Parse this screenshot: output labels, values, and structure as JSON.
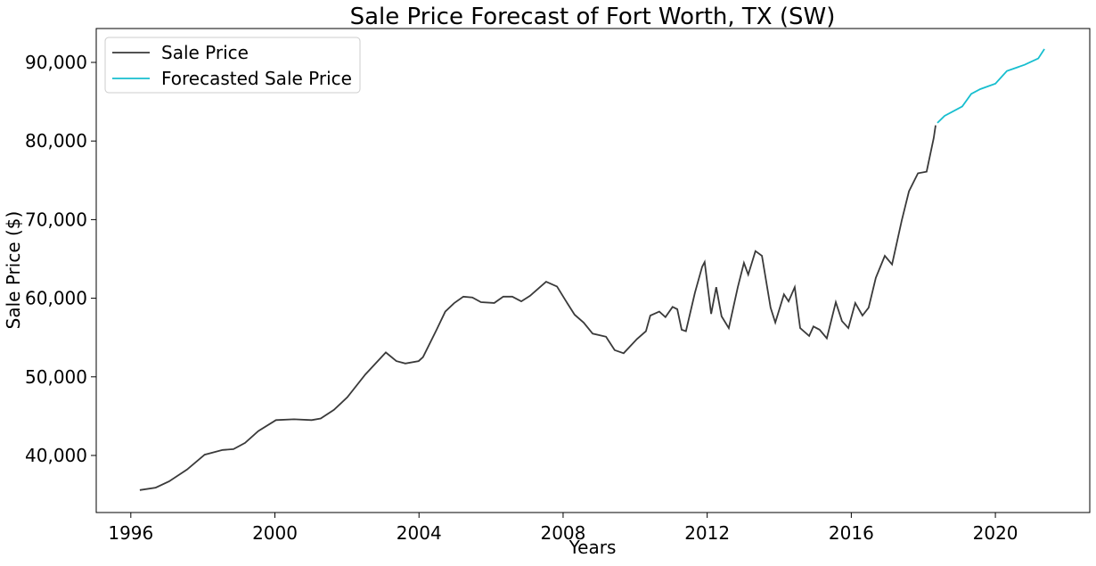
{
  "chart_data": {
    "type": "line",
    "title": "Sale Price Forecast of Fort Worth, TX (SW)",
    "x_label": "Years",
    "y_label": "Sale Price ($)",
    "xlim": [
      1995.04,
      2022.62
    ],
    "xticks": [
      1996,
      2000,
      2004,
      2008,
      2012,
      2016,
      2020
    ],
    "ylim": [
      32740,
      94310
    ],
    "yticks": [
      {
        "value": 40000,
        "label": "40,000"
      },
      {
        "value": 50000,
        "label": "50,000"
      },
      {
        "value": 60000,
        "label": "60,000"
      },
      {
        "value": 70000,
        "label": "70,000"
      },
      {
        "value": 80000,
        "label": "80,000"
      },
      {
        "value": 90000,
        "label": "90,000"
      }
    ],
    "grid": false,
    "legend": "upper left",
    "series": [
      {
        "name": "Sale Price",
        "color": "#3a3a3a",
        "x": [
          1996.25,
          1996.69,
          1997.06,
          1997.56,
          1998.05,
          1998.55,
          1998.85,
          1999.17,
          1999.54,
          2000.03,
          2000.53,
          2001.02,
          2001.27,
          2001.64,
          2002.01,
          2002.51,
          2003.08,
          2003.37,
          2003.62,
          2003.99,
          2004.11,
          2004.49,
          2004.73,
          2004.98,
          2005.23,
          2005.48,
          2005.72,
          2006.09,
          2006.34,
          2006.59,
          2006.84,
          2007.08,
          2007.33,
          2007.53,
          2007.83,
          2008.07,
          2008.32,
          2008.57,
          2008.82,
          2009.19,
          2009.43,
          2009.68,
          2010.05,
          2010.3,
          2010.42,
          2010.67,
          2010.84,
          2011.04,
          2011.17,
          2011.29,
          2011.41,
          2011.66,
          2011.86,
          2011.93,
          2012.11,
          2012.25,
          2012.4,
          2012.6,
          2012.85,
          2013.02,
          2013.14,
          2013.34,
          2013.52,
          2013.76,
          2013.89,
          2014.13,
          2014.26,
          2014.43,
          2014.58,
          2014.83,
          2014.95,
          2015.12,
          2015.32,
          2015.57,
          2015.74,
          2015.92,
          2016.11,
          2016.31,
          2016.48,
          2016.68,
          2016.93,
          2017.13,
          2017.4,
          2017.6,
          2017.85,
          2018.09,
          2018.29,
          2018.34
        ],
        "values": [
          35600,
          35900,
          36700,
          38200,
          40100,
          40700,
          40800,
          41600,
          43100,
          44500,
          44600,
          44500,
          44700,
          45800,
          47400,
          50300,
          53100,
          52000,
          51700,
          52000,
          52500,
          56000,
          58300,
          59400,
          60200,
          60100,
          59500,
          59400,
          60200,
          60200,
          59600,
          60300,
          61300,
          62100,
          61500,
          59700,
          57900,
          56900,
          55500,
          55100,
          53400,
          53000,
          54800,
          55800,
          57800,
          58300,
          57600,
          58900,
          58600,
          56000,
          55800,
          60700,
          64000,
          64600,
          58000,
          61400,
          57700,
          56200,
          61400,
          64500,
          63000,
          66000,
          65400,
          58800,
          56900,
          60500,
          59600,
          61400,
          56200,
          55200,
          56400,
          56000,
          54900,
          59500,
          57100,
          56200,
          59400,
          57800,
          58800,
          62600,
          65400,
          64300,
          69900,
          73600,
          75900,
          76100,
          80400,
          82000
        ]
      },
      {
        "name": "Forecasted Sale Price",
        "color": "#17becf",
        "x": [
          2018.39,
          2018.59,
          2019.08,
          2019.33,
          2019.58,
          2020.0,
          2020.32,
          2020.81,
          2021.19,
          2021.36
        ],
        "values": [
          82300,
          83200,
          84400,
          86000,
          86600,
          87300,
          88900,
          89700,
          90500,
          91700
        ]
      }
    ]
  }
}
